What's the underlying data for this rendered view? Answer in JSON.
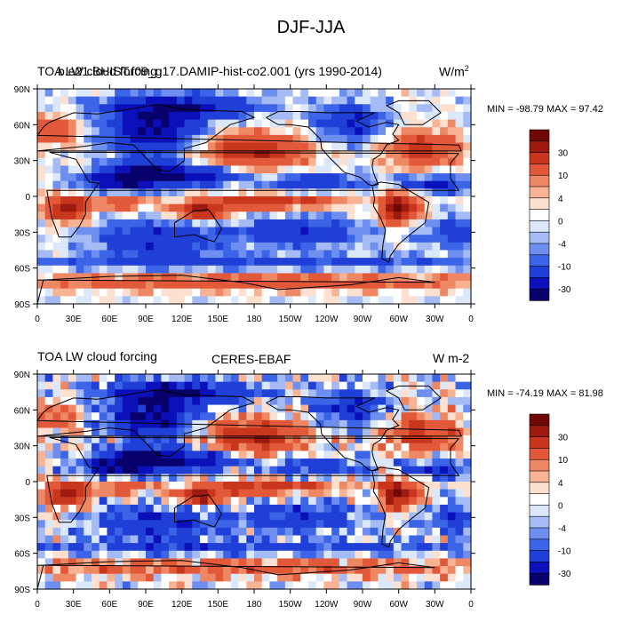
{
  "figure": {
    "title": "DJF-JJA"
  },
  "colors": {
    "scale": [
      "#08006b",
      "#0b10b9",
      "#1f3fd6",
      "#3c64e6",
      "#6f8ff0",
      "#a5bbf5",
      "#dbe7fb",
      "#ffffff",
      "#fde0d0",
      "#f7b394",
      "#ee8763",
      "#e2593a",
      "#c9361e",
      "#9c1a0f",
      "#700808"
    ],
    "land_outline": "#000000"
  },
  "panels": [
    {
      "left_title": "TOA LW cloud forcing",
      "overlap_title": "b.e21.BHIST.f09_g17.DAMIP-hist-co2.001 (yrs 1990-2014)",
      "center_title": "",
      "right_title": "W/m",
      "right_title_sup": "2",
      "min_label": "MIN = -98.79",
      "max_label": "MAX =  97.42",
      "colorbar_labels": [
        "30",
        "10",
        "4",
        "0",
        "-4",
        "-10",
        "-30"
      ]
    },
    {
      "left_title": "TOA LW cloud forcing",
      "overlap_title": "",
      "center_title": "CERES-EBAF",
      "right_title": "W m-2",
      "right_title_sup": "",
      "min_label": "MIN = -74.19",
      "max_label": "MAX =  81.98",
      "colorbar_labels": [
        "30",
        "10",
        "4",
        "0",
        "-4",
        "-10",
        "-30"
      ]
    }
  ],
  "axes": {
    "lat_labels": [
      "90N",
      "60N",
      "30N",
      "0",
      "30S",
      "60S",
      "90S"
    ],
    "lon_labels": [
      "0",
      "30E",
      "60E",
      "90E",
      "120E",
      "150E",
      "180",
      "150W",
      "120W",
      "90W",
      "60W",
      "30W",
      "0"
    ]
  }
}
